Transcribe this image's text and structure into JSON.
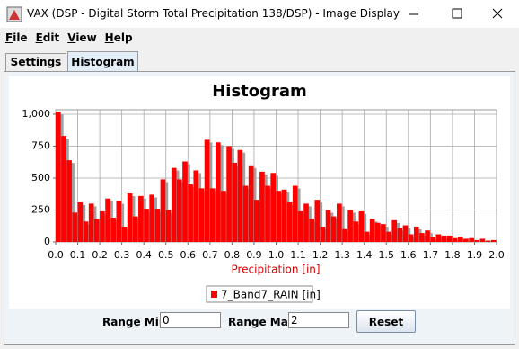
{
  "window": {
    "title": "VAX (DSP - Digital Storm Total Precipitation 138/DSP) - Image Display"
  },
  "menu": [
    "File",
    "Edit",
    "View",
    "Help"
  ],
  "tabs": [
    "Settings",
    "Histogram"
  ],
  "chart_data": {
    "type": "histogram",
    "title": "Histogram",
    "x_label": "Precipitation [in]",
    "bins": [
      0,
      0.025,
      0.05,
      0.075,
      0.1,
      0.125,
      0.15,
      0.175,
      0.2,
      0.225,
      0.25,
      0.275,
      0.3,
      0.325,
      0.35,
      0.375,
      0.4,
      0.425,
      0.45,
      0.475,
      0.5,
      0.525,
      0.55,
      0.575,
      0.6,
      0.625,
      0.65,
      0.675,
      0.7,
      0.725,
      0.75,
      0.775,
      0.8,
      0.825,
      0.85,
      0.875,
      0.9,
      0.925,
      0.95,
      0.975,
      1,
      1.025,
      1.05,
      1.075,
      1.1,
      1.125,
      1.15,
      1.175,
      1.2,
      1.225,
      1.25,
      1.275,
      1.3,
      1.325,
      1.35,
      1.375,
      1.4,
      1.425,
      1.45,
      1.475,
      1.5,
      1.525,
      1.55,
      1.575,
      1.6,
      1.625,
      1.65,
      1.675,
      1.7,
      1.725,
      1.75,
      1.775,
      1.8,
      1.825,
      1.85,
      1.875,
      1.9,
      1.925,
      1.95,
      1.975,
      2
    ],
    "series": [
      {
        "name": "7_Band7_RAIN [in]",
        "color": "#ff0000",
        "values": [
          1020,
          830,
          640,
          230,
          310,
          160,
          300,
          180,
          240,
          340,
          190,
          320,
          120,
          380,
          200,
          360,
          260,
          370,
          260,
          490,
          250,
          580,
          490,
          630,
          450,
          560,
          420,
          800,
          420,
          780,
          400,
          750,
          620,
          720,
          440,
          600,
          330,
          550,
          440,
          540,
          400,
          410,
          310,
          440,
          240,
          300,
          180,
          330,
          120,
          250,
          200,
          300,
          100,
          250,
          160,
          240,
          80,
          180,
          150,
          140,
          80,
          170,
          110,
          130,
          60,
          120,
          70,
          90,
          40,
          60,
          50,
          50,
          30,
          40,
          25,
          30,
          15,
          25,
          10,
          15
        ]
      }
    ],
    "xlim": [
      0,
      2
    ],
    "ylim": [
      0,
      1035
    ],
    "xticks": [
      {
        "value": 0,
        "label": "0.0"
      },
      0.1,
      0.2,
      0.3,
      0.4,
      0.5,
      0.6,
      0.7,
      0.8,
      0.9,
      {
        "value": 1,
        "label": "1.0"
      },
      1.1,
      1.2,
      1.3,
      1.4,
      1.5,
      1.6,
      1.7,
      1.8,
      1.9,
      {
        "value": 2,
        "label": "2.0"
      }
    ],
    "yticks": [
      0,
      250,
      500,
      750,
      {
        "value": 1000,
        "label": "1,000"
      }
    ],
    "grid": true
  },
  "controls": {
    "range_min_label": "Range Min",
    "range_min": "0",
    "range_max_label": "Range Max",
    "range_max": "2",
    "reset": "Reset"
  }
}
